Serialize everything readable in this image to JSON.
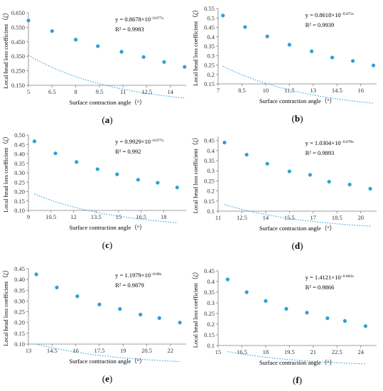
{
  "chart_data": [
    {
      "type": "scatter",
      "panel": "(a)",
      "xlabel": "Surface contraction angle（°）",
      "ylabel": "Local head loss coefficient（ζ）",
      "xlim": [
        5,
        15
      ],
      "ylim": [
        0.15,
        0.65
      ],
      "xticks": [
        "5",
        "6.5",
        "8",
        "9.5",
        "11",
        "12.5",
        "14"
      ],
      "yticks": [
        "0.150",
        "0.250",
        "0.350",
        "0.450",
        "0.550",
        "0.650"
      ],
      "x": [
        5.0,
        6.5,
        8.0,
        9.4,
        10.9,
        12.3,
        13.6,
        14.9
      ],
      "y": [
        0.597,
        0.524,
        0.465,
        0.42,
        0.381,
        0.345,
        0.311,
        0.277
      ],
      "fit": {
        "a": 0.8678,
        "b": 0.077
      },
      "equation": "y = 0.8678×10",
      "exponent": "−0.077x",
      "r2": "R² = 0.9983"
    },
    {
      "type": "scatter",
      "panel": "(b)",
      "xlabel": "Surface contraction angle（°）",
      "ylabel": "Local head loss coefficient（ζ）",
      "xlim": [
        7,
        17
      ],
      "ylim": [
        0.15,
        0.55
      ],
      "xticks": [
        "7",
        "8.5",
        "10",
        "11.5",
        "13",
        "14.5",
        "16"
      ],
      "yticks": [
        "0.15",
        "0.2",
        "0.25",
        "0.3",
        "0.35",
        "0.4",
        "0.45",
        "0.5",
        "0.55"
      ],
      "x": [
        7.3,
        8.7,
        10.1,
        11.5,
        12.9,
        14.2,
        15.5,
        16.8
      ],
      "y": [
        0.513,
        0.452,
        0.402,
        0.358,
        0.323,
        0.29,
        0.272,
        0.248
      ],
      "fit": {
        "a": 0.8618,
        "b": 0.075
      },
      "equation": "y = 0.8618×10",
      "exponent": "−0.075x",
      "r2": "R² = 0.9939"
    },
    {
      "type": "scatter",
      "panel": "(c)",
      "xlabel": "Surface contraction angle（°）",
      "ylabel": "Local head loss coefficient（ζ）",
      "xlim": [
        9,
        19.5
      ],
      "ylim": [
        0.1,
        0.5
      ],
      "xticks": [
        "9",
        "10.5",
        "12",
        "13.5",
        "15",
        "16.5",
        "18"
      ],
      "yticks": [
        "0.10",
        "0.15",
        "0.20",
        "0.25",
        "0.30",
        "0.35",
        "0.40",
        "0.45",
        "0.50"
      ],
      "x": [
        9.4,
        10.8,
        12.2,
        13.6,
        14.9,
        16.3,
        17.6,
        18.9
      ],
      "y": [
        0.467,
        0.403,
        0.357,
        0.319,
        0.292,
        0.263,
        0.247,
        0.222
      ],
      "fit": {
        "a": 0.9929,
        "b": 0.077
      },
      "equation": "y = 0.9929×10",
      "exponent": "−0.077x",
      "r2": "R² = 0.992"
    },
    {
      "type": "scatter",
      "panel": "(d)",
      "xlabel": "Surface contraction angle（°）",
      "ylabel": "Local head loss coefficient（ζ）",
      "xlim": [
        11,
        21
      ],
      "ylim": [
        0.1,
        0.47
      ],
      "xticks": [
        "11",
        "12.5",
        "14",
        "15.5",
        "17",
        "18.5",
        "20"
      ],
      "yticks": [
        "0.1",
        "0.15",
        "0.2",
        "0.25",
        "0.3",
        "0.35",
        "0.4",
        "0.45"
      ],
      "x": [
        11.4,
        12.8,
        14.1,
        15.5,
        16.8,
        18.0,
        19.3,
        20.6
      ],
      "y": [
        0.44,
        0.38,
        0.335,
        0.297,
        0.28,
        0.246,
        0.232,
        0.211
      ],
      "fit": {
        "a": 1.0304,
        "b": 0.078
      },
      "equation": "y = 1.0304×10",
      "exponent": "−0.078x",
      "r2": "R² = 0.9893"
    },
    {
      "type": "scatter",
      "panel": "(e)",
      "xlabel": "Surface contraction angle（°）",
      "ylabel": "Local head loss coefficient（ζ）",
      "xlim": [
        13,
        23
      ],
      "ylim": [
        0.1,
        0.45
      ],
      "xticks": [
        "13",
        "14.5",
        "16",
        "17.5",
        "19",
        "20.5",
        "22"
      ],
      "yticks": [
        "0.10",
        "0.15",
        "0.20",
        "0.25",
        "0.30",
        "0.35",
        "0.40",
        "0.45"
      ],
      "x": [
        13.5,
        14.8,
        16.1,
        17.5,
        18.8,
        20.1,
        21.3,
        22.6
      ],
      "y": [
        0.424,
        0.363,
        0.322,
        0.284,
        0.263,
        0.237,
        0.221,
        0.2
      ],
      "fit": {
        "a": 1.1979,
        "b": 0.08
      },
      "equation": "y = 1.1979×10",
      "exponent": "−0.08x",
      "r2": "R² = 0.9879"
    },
    {
      "type": "scatter",
      "panel": "(f)",
      "xlabel": "Surface contraction angle（°）",
      "ylabel": "Local head loss coefficient（ζ）",
      "xlim": [
        15,
        25
      ],
      "ylim": [
        0.1,
        0.45
      ],
      "xticks": [
        "15",
        "16.5",
        "18",
        "19.5",
        "21",
        "22.5",
        "24"
      ],
      "yticks": [
        "0.1",
        "0.15",
        "0.2",
        "0.25",
        "0.3",
        "0.35",
        "0.4",
        "0.45"
      ],
      "x": [
        15.6,
        16.8,
        18.0,
        19.3,
        20.6,
        21.9,
        23.0,
        24.3
      ],
      "y": [
        0.41,
        0.35,
        0.309,
        0.272,
        0.254,
        0.228,
        0.215,
        0.191
      ],
      "fit": {
        "a": 1.4121,
        "b": 0.083
      },
      "equation": "y = 1.4121×10",
      "exponent": "−0.083x",
      "r2": "R² = 0.9866"
    }
  ],
  "colors": {
    "marker": "#2e9fd6",
    "trendline": "#2e9fd6",
    "axis": "#7f7f7f"
  }
}
